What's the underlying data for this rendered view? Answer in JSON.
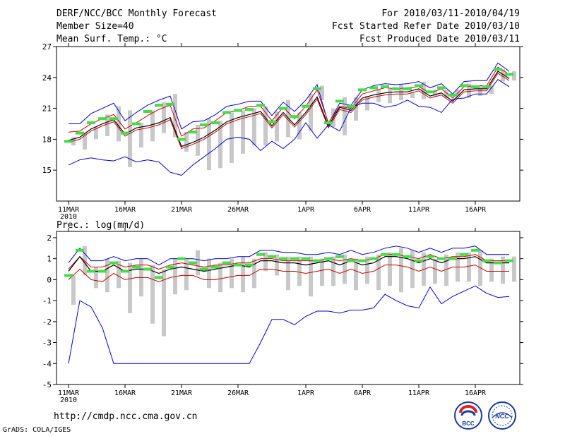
{
  "header": {
    "title": "DERF/NCC/BCC Monthly Forecast",
    "member_size": "Member Size=40",
    "variable": "Mean Surf. Temp.: °C",
    "forecast_period": "For 2010/03/11-2010/04/19",
    "started": "Fcst Started Refer Date 2010/03/10",
    "produced": "Fcst Produced Date 2010/03/11"
  },
  "footer": {
    "url": "http://cmdp.ncc.cma.gov.cn",
    "credit": "GrADS: COLA/IGES",
    "logo_bcc": "BCC",
    "logo_ncc": "NCC"
  },
  "colors": {
    "max_min": "#0000dd",
    "mean": "#000000",
    "upper_quartile": "#cc0000",
    "lower_quartile": "#cc0000",
    "obs": "#44dd44",
    "bars": "#c8c8c8"
  },
  "chart_data": [
    {
      "type": "line",
      "title": "Mean Surf. Temp.: °C",
      "x_ticks": [
        "11MAR",
        "16MAR",
        "21MAR",
        "26MAR",
        "1APR",
        "6APR",
        "11APR",
        "16APR"
      ],
      "x_tick_days": [
        0,
        5,
        10,
        15,
        21,
        26,
        31,
        36
      ],
      "year_label": "2010",
      "y_ticks": [
        "15",
        "18",
        "21",
        "24",
        "27"
      ],
      "y_tick_values": [
        15,
        18,
        21,
        24,
        27
      ],
      "ylim": [
        12,
        27
      ],
      "days": [
        0,
        1,
        2,
        3,
        4,
        5,
        6,
        7,
        8,
        9,
        10,
        11,
        12,
        13,
        14,
        15,
        16,
        17,
        18,
        19,
        20,
        21,
        22,
        23,
        24,
        25,
        26,
        27,
        28,
        29,
        30,
        31,
        32,
        33,
        34,
        35,
        36,
        37,
        38,
        39
      ],
      "series": [
        {
          "name": "max",
          "values": [
            19.5,
            19.5,
            20.5,
            21.0,
            21.5,
            19.8,
            20.6,
            21.3,
            21.8,
            22.2,
            19.0,
            19.7,
            19.8,
            20.4,
            21.2,
            21.4,
            21.7,
            21.7,
            20.3,
            21.6,
            20.7,
            21.8,
            23.3,
            19.5,
            21.5,
            21.3,
            22.8,
            23.2,
            23.4,
            23.3,
            23.4,
            23.6,
            23.0,
            23.4,
            22.4,
            23.6,
            23.7,
            23.7,
            25.4,
            24.6
          ]
        },
        {
          "name": "upper_quartile",
          "values": [
            18.7,
            18.8,
            19.5,
            20.0,
            20.4,
            19.0,
            19.6,
            20.3,
            20.9,
            21.3,
            18.3,
            19.0,
            19.1,
            19.8,
            20.6,
            20.8,
            21.2,
            21.2,
            19.8,
            21.1,
            20.0,
            21.2,
            22.8,
            19.6,
            21.2,
            21.0,
            22.4,
            22.7,
            23.0,
            22.9,
            23.0,
            23.1,
            22.5,
            22.9,
            22.0,
            23.1,
            23.2,
            23.2,
            25.0,
            24.3
          ]
        },
        {
          "name": "mean",
          "values": [
            17.9,
            18.2,
            19.0,
            19.5,
            19.9,
            18.5,
            19.1,
            19.3,
            19.6,
            20.1,
            17.3,
            17.7,
            18.2,
            18.9,
            19.7,
            20.1,
            20.4,
            20.7,
            19.3,
            20.6,
            19.4,
            20.6,
            22.1,
            19.3,
            21.1,
            20.8,
            22.0,
            22.3,
            22.5,
            22.6,
            22.6,
            22.9,
            22.2,
            22.5,
            21.7,
            22.8,
            22.9,
            22.9,
            24.6,
            23.9
          ]
        },
        {
          "name": "lower_quartile",
          "values": [
            17.7,
            18.0,
            18.8,
            19.3,
            19.7,
            18.3,
            18.9,
            19.1,
            19.4,
            19.9,
            17.1,
            17.5,
            18.0,
            18.7,
            19.5,
            19.9,
            20.2,
            20.5,
            19.1,
            20.4,
            19.2,
            20.4,
            21.9,
            19.1,
            20.9,
            20.6,
            21.8,
            22.1,
            22.3,
            22.4,
            22.4,
            22.7,
            22.0,
            22.3,
            21.5,
            22.6,
            22.7,
            22.7,
            24.4,
            23.7
          ]
        },
        {
          "name": "min",
          "values": [
            15.5,
            16.0,
            16.2,
            16.0,
            15.9,
            16.3,
            15.8,
            16.0,
            15.8,
            14.8,
            14.5,
            15.5,
            16.3,
            17.1,
            18.0,
            18.2,
            18.0,
            16.9,
            17.8,
            17.1,
            18.0,
            19.6,
            18.1,
            19.4,
            18.8,
            21.1,
            21.5,
            21.5,
            21.1,
            21.3,
            21.8,
            21.2,
            21.1,
            20.6,
            21.9,
            22.0,
            22.4,
            22.4,
            23.8,
            23.1
          ]
        },
        {
          "name": "obs",
          "values": [
            17.8,
            18.6,
            19.6,
            20.0,
            20.0,
            18.6,
            19.5,
            20.7,
            21.3,
            21.4,
            18.0,
            18.7,
            19.4,
            19.6,
            20.6,
            20.8,
            20.9,
            21.3,
            19.7,
            21.0,
            20.2,
            21.2,
            22.9,
            19.6,
            21.7,
            21.2,
            22.8,
            23.0,
            23.1,
            22.9,
            22.9,
            23.2,
            22.6,
            23.0,
            22.3,
            23.2,
            23.1,
            23.1,
            24.8,
            24.3
          ]
        }
      ],
      "bars": [
        [
          17.4,
          18.2
        ],
        [
          17.0,
          18.6
        ],
        [
          18.0,
          19.2
        ],
        [
          18.3,
          20.4
        ],
        [
          17.8,
          21.2
        ],
        [
          15.3,
          20.8
        ],
        [
          17.2,
          19.6
        ],
        [
          17.8,
          20.8
        ],
        [
          18.6,
          21.6
        ],
        [
          18.2,
          22.4
        ],
        [
          16.8,
          18.7
        ],
        [
          16.4,
          19.4
        ],
        [
          15.0,
          20.0
        ],
        [
          15.2,
          19.8
        ],
        [
          15.7,
          20.6
        ],
        [
          16.6,
          20.8
        ],
        [
          17.4,
          21.0
        ],
        [
          17.4,
          21.2
        ],
        [
          17.8,
          20.7
        ],
        [
          18.2,
          21.8
        ],
        [
          18.0,
          20.6
        ],
        [
          18.8,
          22.4
        ],
        [
          21.8,
          23.2
        ],
        [
          19.2,
          21.0
        ],
        [
          18.4,
          22.1
        ],
        [
          19.8,
          22.1
        ],
        [
          20.8,
          22.2
        ],
        [
          21.6,
          22.8
        ],
        [
          21.5,
          22.9
        ],
        [
          21.8,
          23.3
        ],
        [
          22.0,
          22.6
        ],
        [
          21.9,
          23.6
        ],
        [
          22.1,
          22.8
        ],
        [
          22.0,
          22.8
        ],
        [
          22.2,
          22.8
        ],
        [
          22.0,
          23.4
        ],
        [
          22.2,
          23.2
        ],
        [
          22.4,
          23.2
        ],
        [
          23.6,
          24.8
        ],
        [
          23.7,
          24.6
        ]
      ]
    },
    {
      "type": "line",
      "title": "Prec.: log(mm/d)",
      "x_ticks": [
        "11MAR",
        "16MAR",
        "21MAR",
        "26MAR",
        "1APR",
        "6APR",
        "11APR",
        "16APR"
      ],
      "x_tick_days": [
        0,
        5,
        10,
        15,
        21,
        26,
        31,
        36
      ],
      "year_label": "2010",
      "y_ticks": [
        "-5",
        "-4",
        "-3",
        "-2",
        "-1",
        "0",
        "1",
        "2"
      ],
      "y_tick_values": [
        -5,
        -4,
        -3,
        -2,
        -1,
        0,
        1,
        2
      ],
      "ylim": [
        -5,
        2.3
      ],
      "days": [
        0,
        1,
        2,
        3,
        4,
        5,
        6,
        7,
        8,
        9,
        10,
        11,
        12,
        13,
        14,
        15,
        16,
        17,
        18,
        19,
        20,
        21,
        22,
        23,
        24,
        25,
        26,
        27,
        28,
        29,
        30,
        31,
        32,
        33,
        34,
        35,
        36,
        37,
        38,
        39
      ],
      "series": [
        {
          "name": "max",
          "values": [
            0.8,
            1.5,
            0.9,
            0.9,
            1.1,
            0.9,
            1.0,
            1.0,
            0.7,
            1.0,
            1.0,
            1.0,
            0.9,
            1.0,
            1.0,
            1.1,
            1.1,
            1.4,
            1.4,
            1.3,
            1.3,
            1.2,
            1.2,
            1.3,
            1.2,
            1.4,
            1.2,
            1.3,
            1.5,
            1.6,
            1.5,
            1.3,
            1.5,
            1.3,
            1.5,
            1.5,
            1.6,
            1.2,
            1.2,
            1.2
          ]
        },
        {
          "name": "upper_quartile",
          "values": [
            0.5,
            1.1,
            0.6,
            0.6,
            0.8,
            0.6,
            0.7,
            0.7,
            0.5,
            0.7,
            0.8,
            0.7,
            0.6,
            0.7,
            0.7,
            0.8,
            0.8,
            1.0,
            1.0,
            0.9,
            0.9,
            0.9,
            0.9,
            1.0,
            0.9,
            1.0,
            0.9,
            1.0,
            1.2,
            1.2,
            1.1,
            1.0,
            1.2,
            1.0,
            1.1,
            1.1,
            1.2,
            0.9,
            0.9,
            0.9
          ]
        },
        {
          "name": "mean",
          "values": [
            0.4,
            1.1,
            0.4,
            0.4,
            0.7,
            0.4,
            0.5,
            0.5,
            0.3,
            0.5,
            0.6,
            0.5,
            0.4,
            0.5,
            0.6,
            0.7,
            0.6,
            0.9,
            0.9,
            0.8,
            0.8,
            0.7,
            0.8,
            0.9,
            0.7,
            0.9,
            0.7,
            0.8,
            1.1,
            1.1,
            1.0,
            0.8,
            1.0,
            0.8,
            1.0,
            1.0,
            1.1,
            0.8,
            0.8,
            0.8
          ]
        },
        {
          "name": "lower_quartile",
          "values": [
            0.0,
            0.5,
            0.0,
            -0.1,
            0.3,
            0.0,
            0.1,
            0.1,
            -0.1,
            0.1,
            0.2,
            0.2,
            0.0,
            0.0,
            0.1,
            0.2,
            0.2,
            0.5,
            0.5,
            0.4,
            0.4,
            0.3,
            0.4,
            0.5,
            0.3,
            0.5,
            0.3,
            0.4,
            0.7,
            0.7,
            0.6,
            0.4,
            0.6,
            0.4,
            0.6,
            0.6,
            0.7,
            0.4,
            0.4,
            0.4
          ]
        },
        {
          "name": "min",
          "values": [
            -4.0,
            -1.0,
            -1.3,
            -2.3,
            -4.0,
            -4.0,
            -4.0,
            -4.0,
            -4.0,
            -4.0,
            -4.0,
            -4.0,
            -4.0,
            -4.0,
            -4.0,
            -4.0,
            -4.0,
            -3.0,
            -1.9,
            -1.9,
            -2.15,
            -1.75,
            -1.5,
            -1.5,
            -1.6,
            -1.45,
            -1.45,
            -1.35,
            -0.7,
            -1.0,
            -1.25,
            -1.35,
            -0.35,
            -1.15,
            -0.8,
            -0.55,
            -0.3,
            -0.65,
            -0.85,
            -0.8
          ]
        },
        {
          "name": "obs",
          "values": [
            0.2,
            1.4,
            0.4,
            0.4,
            0.8,
            0.4,
            0.6,
            0.5,
            0.1,
            0.6,
            1.0,
            0.8,
            0.5,
            0.6,
            0.8,
            0.7,
            0.7,
            1.2,
            1.1,
            1.0,
            1.0,
            1.0,
            0.9,
            1.0,
            1.1,
            0.9,
            0.9,
            1.0,
            1.2,
            1.2,
            1.1,
            0.9,
            1.1,
            1.0,
            1.0,
            1.2,
            1.4,
            0.9,
            0.8,
            0.9
          ]
        }
      ],
      "bars": [
        [
          -1.2,
          0.2
        ],
        [
          0.2,
          1.6
        ],
        [
          -0.4,
          0.6
        ],
        [
          -0.6,
          1.0
        ],
        [
          -0.4,
          0.9
        ],
        [
          -1.6,
          0.8
        ],
        [
          -0.8,
          1.0
        ],
        [
          -2.1,
          0.7
        ],
        [
          -2.7,
          0.5
        ],
        [
          -0.7,
          1.0
        ],
        [
          -0.5,
          1.0
        ],
        [
          0.2,
          1.4
        ],
        [
          -0.4,
          1.0
        ],
        [
          -0.6,
          0.8
        ],
        [
          -0.4,
          1.0
        ],
        [
          -0.6,
          1.1
        ],
        [
          -0.4,
          1.0
        ],
        [
          0.4,
          1.3
        ],
        [
          0.2,
          1.2
        ],
        [
          -0.5,
          1.1
        ],
        [
          -0.3,
          1.1
        ],
        [
          -0.8,
          1.1
        ],
        [
          -0.3,
          1.0
        ],
        [
          -0.3,
          1.1
        ],
        [
          -0.2,
          1.2
        ],
        [
          -0.5,
          1.0
        ],
        [
          -0.2,
          1.1
        ],
        [
          -0.5,
          1.2
        ],
        [
          -0.3,
          1.3
        ],
        [
          -0.6,
          1.5
        ],
        [
          -0.4,
          1.4
        ],
        [
          -0.3,
          1.3
        ],
        [
          -0.2,
          1.0
        ],
        [
          -0.3,
          1.2
        ],
        [
          -0.1,
          1.3
        ],
        [
          -0.1,
          1.3
        ],
        [
          -0.3,
          1.4
        ],
        [
          -0.1,
          1.0
        ],
        [
          -0.2,
          1.1
        ],
        [
          -0.1,
          1.1
        ]
      ]
    }
  ]
}
